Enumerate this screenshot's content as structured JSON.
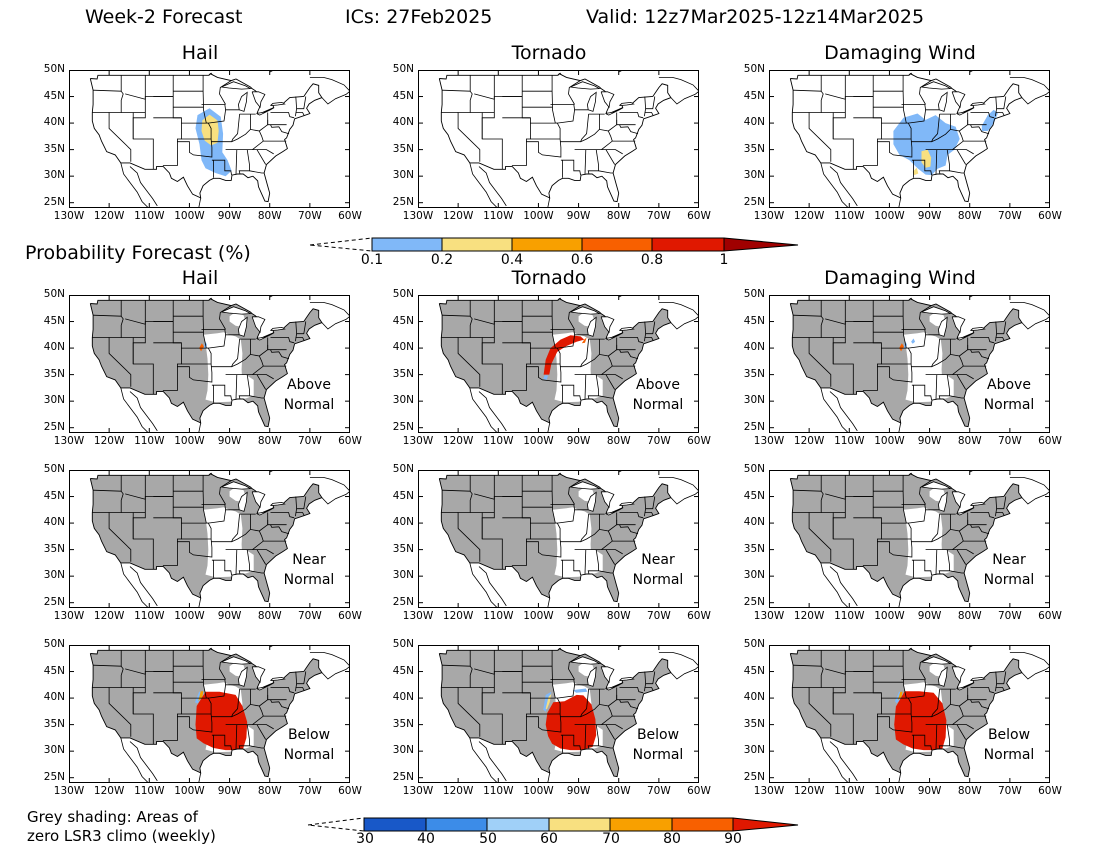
{
  "header": {
    "title": "Week-2 Forecast",
    "ics": "ICs: 27Feb2025",
    "valid": "Valid: 12z7Mar2025-12z14Mar2025"
  },
  "hazards": [
    "Hail",
    "Tornado",
    "Damaging Wind"
  ],
  "axes": {
    "lat_labels": [
      "50N",
      "45N",
      "40N",
      "35N",
      "30N",
      "25N"
    ],
    "lon_labels": [
      "130W",
      "120W",
      "110W",
      "100W",
      "90W",
      "80W",
      "70W",
      "60W"
    ]
  },
  "probability_section": {
    "label": "Probability Forecast (%)",
    "colorbar_labels": [
      "0.1",
      "0.2",
      "0.4",
      "0.6",
      "0.8",
      "1"
    ],
    "colors": [
      "#80b8f8",
      "#f8e080",
      "#f8a000",
      "#f86000",
      "#e01800",
      "#a00000"
    ]
  },
  "anomaly_rows": [
    {
      "note_line1": "Above",
      "note_line2": "Normal"
    },
    {
      "note_line1": "Near",
      "note_line2": "Normal"
    },
    {
      "note_line1": "Below",
      "note_line2": "Normal"
    }
  ],
  "footer": {
    "line1": "Grey shading: Areas of",
    "line2": "zero LSR3 climo (weekly)",
    "colorbar_labels": [
      "30",
      "40",
      "50",
      "60",
      "70",
      "80",
      "90"
    ],
    "colors": [
      "#1858c8",
      "#3c8ce8",
      "#a0d0f8",
      "#f8e080",
      "#f8a000",
      "#f86000",
      "#e01800"
    ]
  },
  "map_colors": {
    "grey_zero_climo": "#a8a8a8",
    "prob_blue": "#80b8f8",
    "prob_yellow": "#f8e080",
    "anom_red": "#e01800",
    "anom_orange": "#f86000"
  }
}
